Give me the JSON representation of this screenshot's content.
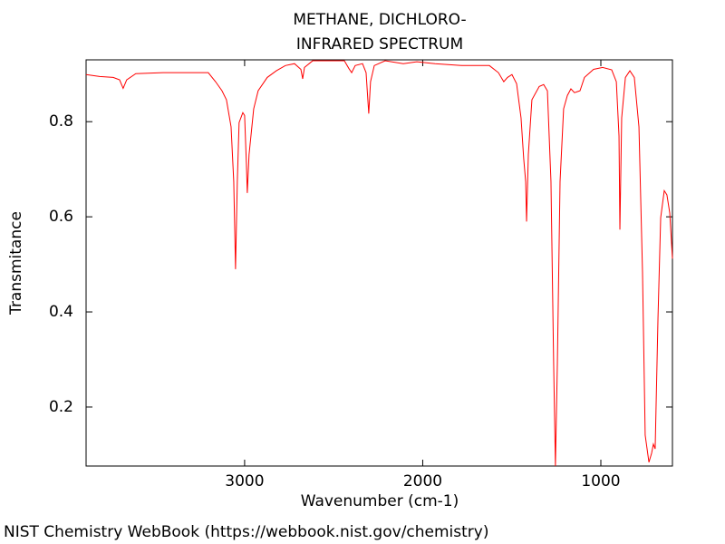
{
  "chart_data": {
    "type": "line",
    "title": "METHANE, DICHLORO-",
    "subtitle": "INFRARED SPECTRUM",
    "x_label": "Wavenumber (cm-1)",
    "y_label": "Transmitance",
    "source": "NIST Chemistry WebBook (https://webbook.nist.gov/chemistry)",
    "color": "#ff0000",
    "grid": false,
    "xlim": [
      3890,
      598
    ],
    "ylim": [
      0.076,
      0.93
    ],
    "xticks": [
      3000,
      2000,
      1000
    ],
    "yticks": [
      0.2,
      0.4,
      0.6,
      0.8
    ],
    "x": [
      3890,
      3814,
      3738,
      3702,
      3682,
      3662,
      3611,
      3458,
      3204,
      3163,
      3127,
      3102,
      3076,
      3061,
      3051,
      3041,
      3031,
      3010,
      3000,
      2990,
      2985,
      2975,
      2949,
      2924,
      2873,
      2822,
      2771,
      2720,
      2684,
      2674,
      2664,
      2618,
      2440,
      2415,
      2399,
      2379,
      2338,
      2318,
      2303,
      2293,
      2272,
      2211,
      2109,
      2033,
      1931,
      1779,
      1626,
      1575,
      1545,
      1524,
      1499,
      1473,
      1448,
      1433,
      1422,
      1417,
      1407,
      1387,
      1346,
      1321,
      1300,
      1280,
      1265,
      1255,
      1244,
      1229,
      1209,
      1188,
      1168,
      1148,
      1117,
      1092,
      1041,
      990,
      939,
      913,
      898,
      893,
      883,
      862,
      837,
      812,
      786,
      766,
      751,
      730,
      715,
      705,
      695,
      679,
      664,
      644,
      629,
      613,
      598
    ],
    "values": [
      0.899,
      0.895,
      0.893,
      0.888,
      0.87,
      0.888,
      0.901,
      0.903,
      0.903,
      0.884,
      0.865,
      0.846,
      0.789,
      0.674,
      0.49,
      0.674,
      0.798,
      0.819,
      0.813,
      0.712,
      0.65,
      0.731,
      0.827,
      0.865,
      0.893,
      0.907,
      0.918,
      0.922,
      0.91,
      0.89,
      0.914,
      0.928,
      0.928,
      0.912,
      0.903,
      0.918,
      0.922,
      0.903,
      0.817,
      0.884,
      0.918,
      0.928,
      0.922,
      0.926,
      0.922,
      0.918,
      0.918,
      0.903,
      0.884,
      0.893,
      0.899,
      0.88,
      0.808,
      0.722,
      0.674,
      0.59,
      0.731,
      0.846,
      0.874,
      0.878,
      0.865,
      0.674,
      0.293,
      0.076,
      0.293,
      0.674,
      0.827,
      0.855,
      0.869,
      0.861,
      0.865,
      0.893,
      0.91,
      0.914,
      0.909,
      0.884,
      0.77,
      0.573,
      0.808,
      0.893,
      0.907,
      0.893,
      0.789,
      0.484,
      0.141,
      0.084,
      0.103,
      0.122,
      0.112,
      0.389,
      0.598,
      0.655,
      0.646,
      0.608,
      0.512
    ]
  }
}
